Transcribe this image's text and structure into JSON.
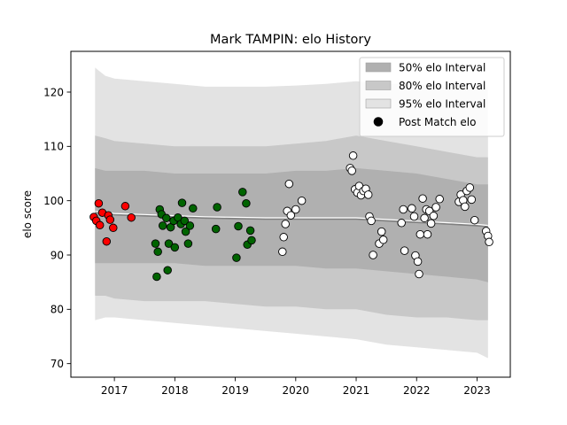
{
  "chart_data": {
    "type": "scatter",
    "title": "Mark TAMPIN: elo History",
    "xlabel": "",
    "ylabel": "elo score",
    "xlim": [
      2016.28,
      2023.55
    ],
    "ylim": [
      67.5,
      127.5
    ],
    "x_ticks": [
      2017,
      2018,
      2019,
      2020,
      2021,
      2022,
      2023
    ],
    "x_tick_labels": [
      "2017",
      "2018",
      "2019",
      "2020",
      "2021",
      "2022",
      "2023"
    ],
    "y_ticks": [
      70,
      80,
      90,
      100,
      110,
      120
    ],
    "y_tick_labels": [
      "70",
      "80",
      "90",
      "100",
      "110",
      "120"
    ],
    "grid": false,
    "legend": {
      "placement": "top-right",
      "entries": [
        {
          "label": "50% elo Interval",
          "color": "#b0b0b0",
          "kind": "patch"
        },
        {
          "label": "80% elo Interval",
          "color": "#c8c8c8",
          "kind": "patch"
        },
        {
          "label": "95% elo Interval",
          "color": "#e3e3e3",
          "kind": "patch"
        },
        {
          "label": "Post Match elo",
          "color": "#000000",
          "kind": "marker"
        }
      ]
    },
    "bands": {
      "x": [
        2016.68,
        2016.85,
        2017.0,
        2017.5,
        2018.0,
        2018.5,
        2019.0,
        2019.5,
        2020.0,
        2020.5,
        2021.0,
        2021.5,
        2022.0,
        2022.5,
        2023.0,
        2023.18
      ],
      "band95": {
        "upper": [
          124.5,
          123.0,
          122.5,
          122.0,
          121.5,
          121.0,
          121.0,
          121.0,
          121.2,
          121.5,
          122.0,
          121.5,
          121.5,
          121.0,
          120.5,
          121.0
        ],
        "lower": [
          78.0,
          78.5,
          78.5,
          78.0,
          77.5,
          77.0,
          76.5,
          76.0,
          75.5,
          75.0,
          74.5,
          73.5,
          73.0,
          72.5,
          72.0,
          71.0
        ]
      },
      "band80": {
        "upper": [
          112.0,
          111.5,
          111.0,
          110.5,
          110.0,
          110.0,
          110.0,
          110.0,
          110.5,
          111.0,
          112.0,
          111.0,
          110.0,
          109.0,
          108.0,
          108.0
        ],
        "lower": [
          82.5,
          82.5,
          82.0,
          81.5,
          81.5,
          81.5,
          81.0,
          80.5,
          80.5,
          80.0,
          80.0,
          79.0,
          78.5,
          78.5,
          78.0,
          78.0
        ]
      },
      "band50": {
        "upper": [
          106.0,
          105.5,
          105.5,
          105.5,
          105.0,
          105.0,
          105.0,
          105.0,
          105.5,
          105.5,
          106.0,
          105.5,
          105.0,
          104.0,
          103.0,
          103.0
        ],
        "lower": [
          88.5,
          88.5,
          88.5,
          88.5,
          88.5,
          88.0,
          88.0,
          88.0,
          88.0,
          87.5,
          87.5,
          87.0,
          86.5,
          86.0,
          85.5,
          85.0
        ]
      },
      "median": [
        97.8,
        97.6,
        97.4,
        97.2,
        97.0,
        96.8,
        96.7,
        96.6,
        96.6,
        96.6,
        96.6,
        96.3,
        96.0,
        95.7,
        95.4,
        95.2
      ]
    },
    "series": [
      {
        "color": "#ff0000",
        "points": [
          [
            2016.66,
            97.0
          ],
          [
            2016.7,
            96.3
          ],
          [
            2016.74,
            99.5
          ],
          [
            2016.76,
            95.5
          ],
          [
            2016.8,
            97.8
          ],
          [
            2016.87,
            92.5
          ],
          [
            2016.9,
            97.3
          ],
          [
            2016.93,
            96.5
          ],
          [
            2016.98,
            95.0
          ],
          [
            2017.18,
            99.0
          ],
          [
            2017.28,
            96.9
          ]
        ]
      },
      {
        "color": "#006400",
        "points": [
          [
            2017.68,
            92.1
          ],
          [
            2017.7,
            86.0
          ],
          [
            2017.72,
            90.6
          ],
          [
            2017.75,
            98.4
          ],
          [
            2017.78,
            97.5
          ],
          [
            2017.8,
            95.4
          ],
          [
            2017.86,
            96.8
          ],
          [
            2017.88,
            87.2
          ],
          [
            2017.9,
            92.1
          ],
          [
            2017.93,
            95.1
          ],
          [
            2017.98,
            96.3
          ],
          [
            2018.0,
            91.4
          ],
          [
            2018.05,
            96.9
          ],
          [
            2018.1,
            95.7
          ],
          [
            2018.12,
            99.6
          ],
          [
            2018.16,
            96.3
          ],
          [
            2018.18,
            94.3
          ],
          [
            2018.22,
            92.1
          ],
          [
            2018.25,
            95.4
          ],
          [
            2018.3,
            98.6
          ],
          [
            2018.68,
            94.8
          ],
          [
            2018.7,
            98.8
          ],
          [
            2019.02,
            89.5
          ],
          [
            2019.05,
            95.3
          ],
          [
            2019.12,
            101.6
          ],
          [
            2019.18,
            99.5
          ],
          [
            2019.2,
            91.9
          ],
          [
            2019.25,
            94.5
          ],
          [
            2019.27,
            92.7
          ]
        ]
      },
      {
        "color": "#ffffff",
        "points": [
          [
            2019.78,
            90.6
          ],
          [
            2019.8,
            93.3
          ],
          [
            2019.83,
            95.7
          ],
          [
            2019.86,
            98.1
          ],
          [
            2019.89,
            103.1
          ],
          [
            2019.92,
            97.3
          ],
          [
            2020.0,
            98.4
          ],
          [
            2020.1,
            100.0
          ],
          [
            2020.9,
            106.0
          ],
          [
            2020.93,
            105.5
          ],
          [
            2020.95,
            108.3
          ],
          [
            2020.98,
            102.1
          ],
          [
            2021.02,
            101.5
          ],
          [
            2021.05,
            102.7
          ],
          [
            2021.08,
            101.0
          ],
          [
            2021.12,
            101.8
          ],
          [
            2021.16,
            102.2
          ],
          [
            2021.2,
            101.1
          ],
          [
            2021.22,
            97.1
          ],
          [
            2021.25,
            96.3
          ],
          [
            2021.28,
            90.0
          ],
          [
            2021.38,
            92.1
          ],
          [
            2021.42,
            94.3
          ],
          [
            2021.45,
            92.8
          ],
          [
            2021.75,
            95.9
          ],
          [
            2021.78,
            98.4
          ],
          [
            2021.8,
            90.8
          ],
          [
            2021.92,
            98.6
          ],
          [
            2021.96,
            97.1
          ],
          [
            2021.98,
            89.9
          ],
          [
            2022.02,
            88.8
          ],
          [
            2022.04,
            86.5
          ],
          [
            2022.06,
            93.8
          ],
          [
            2022.1,
            100.4
          ],
          [
            2022.13,
            96.8
          ],
          [
            2022.16,
            98.4
          ],
          [
            2022.18,
            93.8
          ],
          [
            2022.21,
            98.1
          ],
          [
            2022.24,
            95.8
          ],
          [
            2022.28,
            97.2
          ],
          [
            2022.32,
            98.8
          ],
          [
            2022.38,
            100.3
          ],
          [
            2022.7,
            99.8
          ],
          [
            2022.73,
            101.1
          ],
          [
            2022.77,
            100.1
          ],
          [
            2022.8,
            98.9
          ],
          [
            2022.83,
            101.8
          ],
          [
            2022.88,
            102.4
          ],
          [
            2022.91,
            100.2
          ],
          [
            2022.96,
            96.4
          ],
          [
            2023.15,
            94.4
          ],
          [
            2023.18,
            93.5
          ],
          [
            2023.2,
            92.4
          ]
        ]
      }
    ]
  }
}
